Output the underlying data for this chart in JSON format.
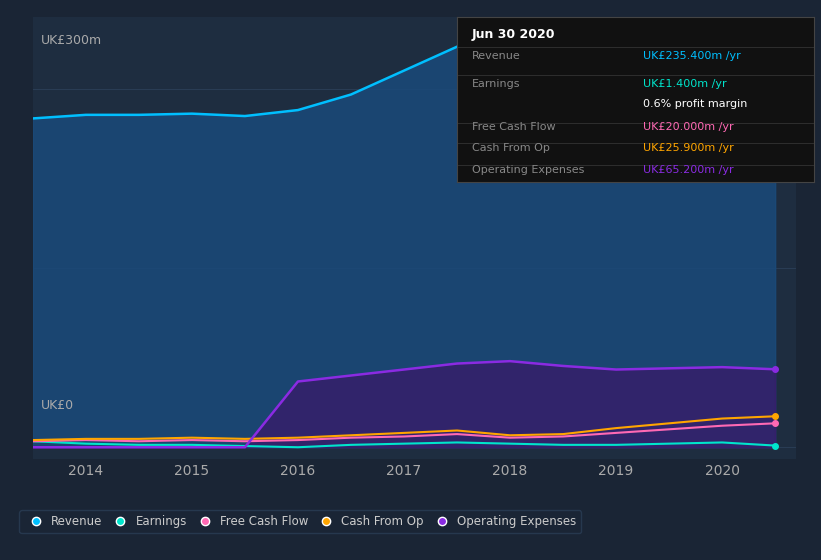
{
  "years": [
    2013.5,
    2014,
    2014.5,
    2015,
    2015.5,
    2016,
    2016.5,
    2017,
    2017.5,
    2018,
    2018.5,
    2019,
    2019.5,
    2020,
    2020.5
  ],
  "revenue": [
    275,
    278,
    278,
    279,
    277,
    282,
    295,
    315,
    335,
    355,
    340,
    330,
    325,
    310,
    235
  ],
  "earnings": [
    5,
    3,
    2,
    2,
    1,
    0,
    2,
    3,
    4,
    3,
    2,
    2,
    3,
    4,
    1.4
  ],
  "free_cash_flow": [
    5,
    6,
    5,
    6,
    5,
    6,
    8,
    9,
    11,
    8,
    9,
    12,
    15,
    18,
    20
  ],
  "cash_from_op": [
    6,
    7,
    7,
    8,
    7,
    8,
    10,
    12,
    14,
    10,
    11,
    16,
    20,
    24,
    25.9
  ],
  "operating_expenses": [
    0,
    0,
    0,
    0,
    0,
    55,
    60,
    65,
    70,
    72,
    68,
    65,
    66,
    67,
    65.2
  ],
  "bg_color": "#1a2535",
  "plot_bg_color": "#1e2d40",
  "revenue_color": "#00bfff",
  "earnings_color": "#00e5cc",
  "free_cash_flow_color": "#ff69b4",
  "cash_from_op_color": "#ffa500",
  "operating_expenses_color": "#8a2be2",
  "revenue_fill_color": "#1a4a7a",
  "operating_expenses_fill_color": "#3a1a6a",
  "ylabel": "UK£300m",
  "y0label": "UK£0",
  "ylim": [
    -10,
    360
  ],
  "xlim": [
    2013.5,
    2020.7
  ],
  "grid_color": "#2a3d55",
  "legend_items": [
    "Revenue",
    "Earnings",
    "Free Cash Flow",
    "Cash From Op",
    "Operating Expenses"
  ],
  "info_box": {
    "title": "Jun 30 2020",
    "revenue_label": "Revenue",
    "revenue_value": "UK£235.400m /yr",
    "earnings_label": "Earnings",
    "earnings_value": "UK£1.400m /yr",
    "profit_margin": "0.6% profit margin",
    "fcf_label": "Free Cash Flow",
    "fcf_value": "UK£20.000m /yr",
    "cfop_label": "Cash From Op",
    "cfop_value": "UK£25.900m /yr",
    "opex_label": "Operating Expenses",
    "opex_value": "UK£65.200m /yr"
  }
}
